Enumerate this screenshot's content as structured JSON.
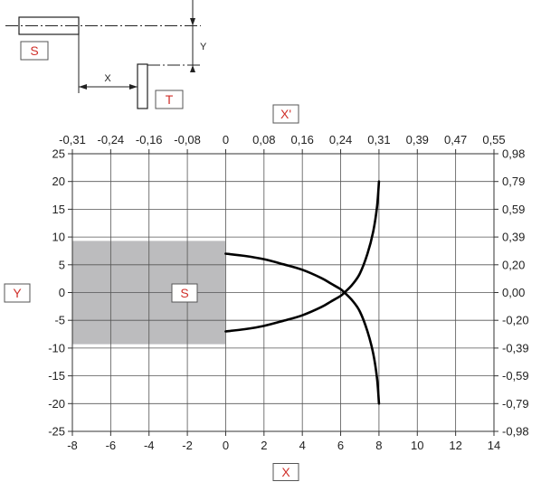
{
  "diagram": {
    "sensor_label": "S",
    "target_label": "T",
    "x_dimension_label": "X",
    "y_dimension_label": "Y"
  },
  "chart_data": {
    "type": "line",
    "xlabel": "X",
    "ylabel": "Y",
    "top_axis_label": "X'",
    "sensor_area_label": "S",
    "xlim": [
      -8,
      14
    ],
    "ylim": [
      -25,
      25
    ],
    "x_ticks": [
      -8,
      -6,
      -4,
      -2,
      0,
      2,
      4,
      6,
      8,
      10,
      12,
      14
    ],
    "y_ticks": [
      25,
      20,
      15,
      10,
      5,
      0,
      -5,
      -10,
      -15,
      -20,
      -25
    ],
    "x_tick_labels": [
      "-8",
      "-6",
      "-4",
      "-2",
      "0",
      "2",
      "4",
      "6",
      "8",
      "10",
      "12",
      "14"
    ],
    "y_tick_labels": [
      "25",
      "20",
      "15",
      "10",
      "5",
      "0",
      "-5",
      "-10",
      "-15",
      "-20",
      "-25"
    ],
    "top_tick_labels": [
      "-0,31",
      "-0,24",
      "-0,16",
      "-0,08",
      "0",
      "0,08",
      "0,16",
      "0,24",
      "0,31",
      "0,39",
      "0,47",
      "0,55"
    ],
    "right_tick_labels": [
      "0,98",
      "0,79",
      "0,59",
      "0,39",
      "0,20",
      "0,00",
      "-0,20",
      "-0,39",
      "-0,59",
      "-0,79",
      "-0,98"
    ],
    "grid": true,
    "sensor_area": {
      "x": [
        -8,
        0
      ],
      "y": [
        -9.3,
        9.3
      ],
      "color": "#bcbcbe"
    },
    "series": [
      {
        "x": [
          0,
          1,
          2,
          3,
          4,
          5,
          5.5,
          6,
          6.2
        ],
        "y": [
          7,
          6.6,
          6.0,
          5.1,
          4.1,
          2.6,
          1.6,
          0.6,
          0
        ],
        "color": "#000000"
      },
      {
        "x": [
          0,
          1,
          2,
          3,
          4,
          5,
          5.5,
          6,
          6.2
        ],
        "y": [
          -7,
          -6.6,
          -6.0,
          -5.1,
          -4.1,
          -2.6,
          -1.6,
          -0.6,
          0
        ],
        "color": "#000000"
      },
      {
        "x": [
          6.2,
          6.6,
          7.0,
          7.4,
          7.7,
          7.9,
          8.0
        ],
        "y": [
          0,
          -1.4,
          -3.4,
          -7,
          -11,
          -15.5,
          -20
        ],
        "color": "#000000"
      },
      {
        "x": [
          6.2,
          6.6,
          7.0,
          7.4,
          7.7,
          7.9,
          8.0
        ],
        "y": [
          0,
          1.4,
          3.4,
          7,
          11,
          15.5,
          20
        ],
        "color": "#000000"
      }
    ]
  }
}
